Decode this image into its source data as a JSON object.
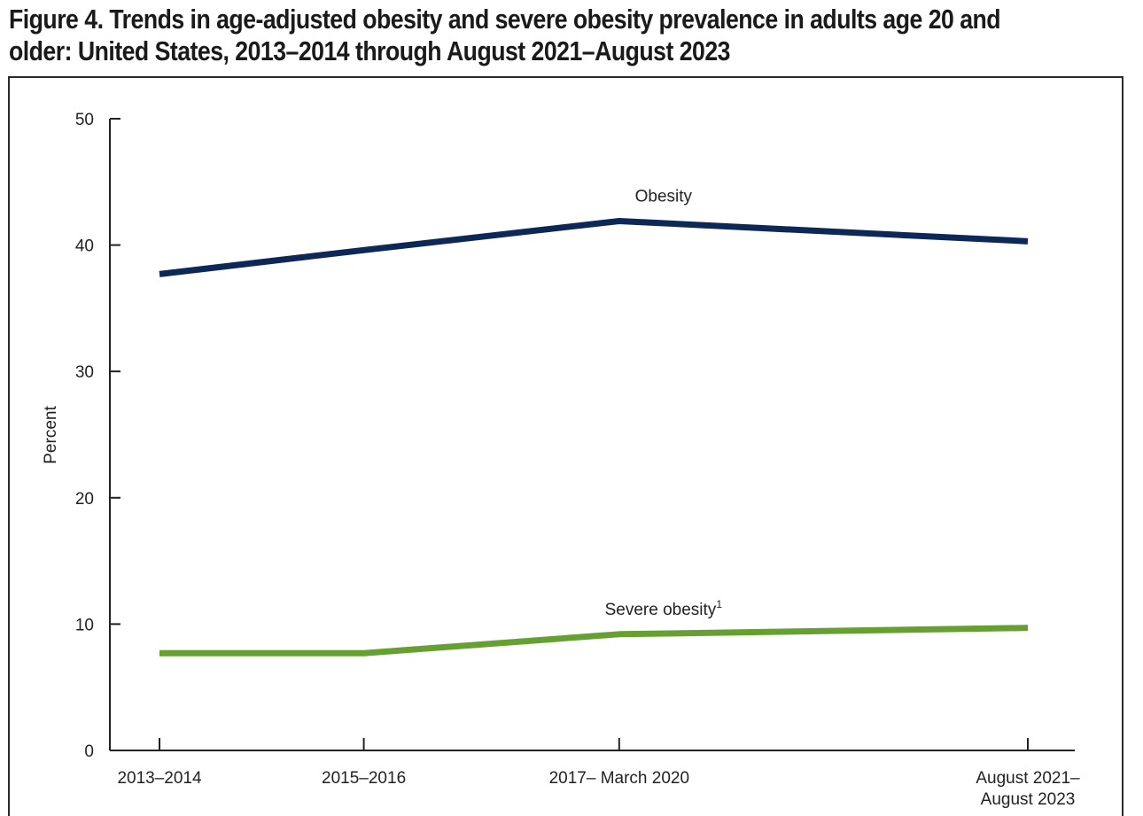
{
  "title_lines": [
    "Figure 4. Trends in age-adjusted obesity and severe obesity prevalence in adults age 20 and",
    "older: United States, 2013–2014 through August 2021–August 2023"
  ],
  "chart_data": {
    "type": "line",
    "title": "Figure 4. Trends in age-adjusted obesity and severe obesity prevalence in adults age 20 and older: United States, 2013–2014 through August 2021–August 2023",
    "xlabel": "",
    "ylabel": "Percent",
    "ylim": [
      0,
      50
    ],
    "yticks": [
      0,
      10,
      20,
      30,
      40,
      50
    ],
    "categories": [
      "2013–2014",
      "2015–2016",
      "2017– March 2020",
      "August 2021–\nAugust 2023"
    ],
    "category_positions": [
      0,
      4,
      9,
      17
    ],
    "series": [
      {
        "name": "Obesity",
        "label": "Obesity",
        "color": "#0d2756",
        "values": [
          37.7,
          39.6,
          41.9,
          40.3
        ]
      },
      {
        "name": "Severe obesity",
        "label": "Severe obesity",
        "superscript": "1",
        "color": "#67a032",
        "values": [
          7.7,
          7.7,
          9.2,
          9.7
        ]
      }
    ],
    "grid": false,
    "legend": "inline labels above lines"
  }
}
